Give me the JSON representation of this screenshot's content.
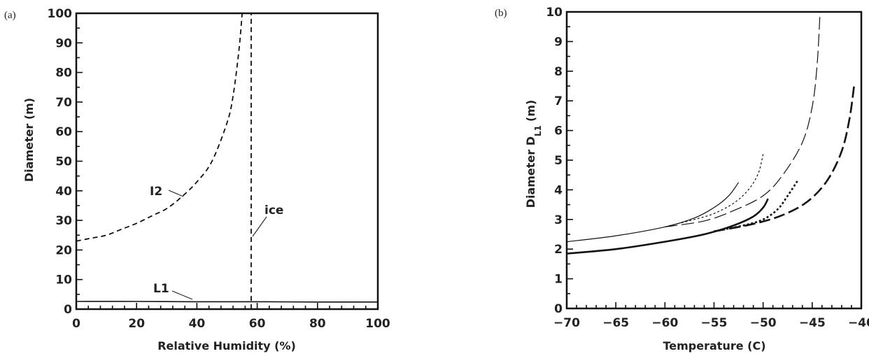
{
  "chart_data": [
    {
      "panel_label": "(a)",
      "type": "line",
      "xlabel": "Relative Humidity (%)",
      "ylabel": "Diameter (m)",
      "xlim": [
        0,
        100
      ],
      "ylim": [
        0,
        100
      ],
      "xticks": [
        "0",
        "20",
        "40",
        "60",
        "80",
        "100"
      ],
      "yticks": [
        "0",
        "10",
        "20",
        "30",
        "40",
        "50",
        "60",
        "70",
        "80",
        "90",
        "100"
      ],
      "grid": false,
      "series": [
        {
          "name": "I2",
          "style": "dashed",
          "x": [
            0,
            5,
            10,
            15,
            20,
            25,
            30,
            35,
            40,
            45,
            50,
            52,
            54,
            55
          ],
          "y": [
            23,
            24,
            25,
            27,
            29,
            31.5,
            34,
            38,
            43,
            50,
            63,
            72,
            88,
            100
          ]
        },
        {
          "name": "ice",
          "style": "dashed",
          "x": [
            58,
            58
          ],
          "y": [
            0,
            100
          ]
        },
        {
          "name": "L1",
          "style": "solid",
          "x": [
            0,
            20,
            40,
            60,
            80,
            100
          ],
          "y": [
            2.6,
            2.6,
            2.5,
            2.5,
            2.4,
            2.4
          ]
        }
      ],
      "annotations": [
        {
          "text": "I2",
          "target": "I2"
        },
        {
          "text": "ice",
          "target": "ice"
        },
        {
          "text": "L1",
          "target": "L1"
        }
      ]
    },
    {
      "panel_label": "(b)",
      "type": "line",
      "xlabel": "Temperature (C)",
      "ylabel": "Diameter D",
      "ylabel_sub": "L1",
      "ylabel_unit": "(m)",
      "xlim": [
        -70,
        -40
      ],
      "ylim": [
        0,
        10
      ],
      "xticks": [
        "−70",
        "−65",
        "−60",
        "−55",
        "−50",
        "−45",
        "−40"
      ],
      "yticks": [
        "0",
        "1",
        "2",
        "3",
        "4",
        "5",
        "6",
        "7",
        "8",
        "9",
        "10"
      ],
      "grid": false,
      "series": [
        {
          "style": "thin-solid",
          "x": [
            -70,
            -65,
            -60,
            -57,
            -55,
            -53.5,
            -52.5
          ],
          "y": [
            2.25,
            2.45,
            2.75,
            3.05,
            3.4,
            3.8,
            4.25
          ]
        },
        {
          "style": "thin-dotted",
          "x": [
            -60,
            -57,
            -55,
            -53,
            -51.5,
            -50.5,
            -50
          ],
          "y": [
            2.75,
            3.0,
            3.2,
            3.55,
            4.0,
            4.55,
            5.2
          ]
        },
        {
          "style": "thin-longdash",
          "x": [
            -60,
            -56,
            -53,
            -50,
            -48,
            -46,
            -45,
            -44.5,
            -44.2
          ],
          "y": [
            2.75,
            2.95,
            3.3,
            3.8,
            4.5,
            5.6,
            6.8,
            8.2,
            10
          ]
        },
        {
          "style": "thick-solid",
          "x": [
            -70,
            -65,
            -60,
            -56,
            -53,
            -51,
            -50,
            -49.5
          ],
          "y": [
            1.85,
            2.0,
            2.25,
            2.5,
            2.8,
            3.1,
            3.4,
            3.7
          ]
        },
        {
          "style": "thick-dotted",
          "x": [
            -55,
            -52,
            -50,
            -48.5,
            -47.5,
            -46.5
          ],
          "y": [
            2.6,
            2.8,
            3.0,
            3.35,
            3.8,
            4.3
          ]
        },
        {
          "style": "thick-longdash",
          "x": [
            -55,
            -51,
            -48,
            -45.5,
            -43.5,
            -42,
            -41.2,
            -40.7
          ],
          "y": [
            2.6,
            2.85,
            3.15,
            3.6,
            4.3,
            5.3,
            6.4,
            7.6
          ]
        }
      ]
    }
  ]
}
